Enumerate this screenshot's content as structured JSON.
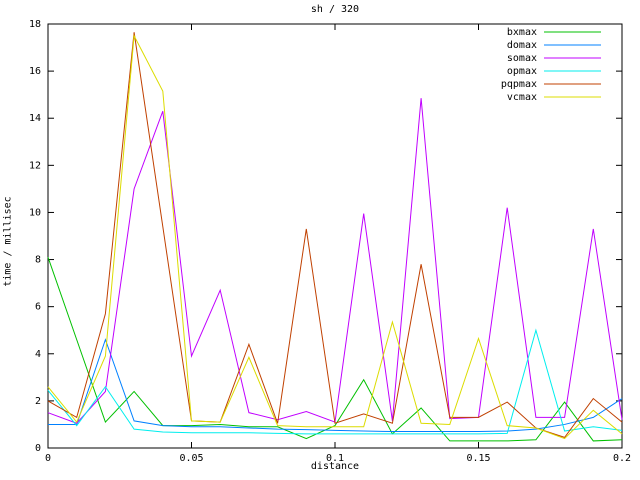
{
  "title": "sh / 320",
  "axes": {
    "x_label": "distance",
    "y_label": "time / millisec",
    "x_ticks": [
      {
        "v": 0,
        "label": "0"
      },
      {
        "v": 0.05,
        "label": "0.05"
      },
      {
        "v": 0.1,
        "label": "0.1"
      },
      {
        "v": 0.15,
        "label": "0.15"
      },
      {
        "v": 0.2,
        "label": "0.2"
      }
    ],
    "y_ticks": [
      {
        "v": 0,
        "label": "0"
      },
      {
        "v": 2,
        "label": "2"
      },
      {
        "v": 4,
        "label": "4"
      },
      {
        "v": 6,
        "label": "6"
      },
      {
        "v": 8,
        "label": "8"
      },
      {
        "v": 10,
        "label": "10"
      },
      {
        "v": 12,
        "label": "12"
      },
      {
        "v": 14,
        "label": "14"
      },
      {
        "v": 16,
        "label": "16"
      },
      {
        "v": 18,
        "label": "18"
      }
    ]
  },
  "chart_data": {
    "type": "line",
    "title": "sh / 320",
    "xlabel": "distance",
    "ylabel": "time / millisec",
    "xlim": [
      0,
      0.2
    ],
    "ylim": [
      0,
      18
    ],
    "grid": false,
    "legend_position": "top-right-inside",
    "x": [
      0,
      0.01,
      0.02,
      0.03,
      0.04,
      0.05,
      0.06,
      0.07,
      0.08,
      0.09,
      0.1,
      0.11,
      0.12,
      0.13,
      0.14,
      0.15,
      0.16,
      0.17,
      0.18,
      0.19,
      0.2
    ],
    "series": [
      {
        "name": "bxmax",
        "color": "#00c000",
        "values": [
          8.1,
          4.6,
          1.1,
          2.4,
          0.95,
          0.95,
          1.0,
          0.9,
          0.9,
          0.4,
          0.95,
          2.9,
          0.6,
          1.7,
          0.3,
          0.3,
          0.3,
          0.35,
          1.95,
          0.3,
          0.35
        ]
      },
      {
        "name": "domax",
        "color": "#0080ff",
        "values": [
          1.0,
          1.0,
          4.6,
          1.15,
          0.95,
          0.9,
          0.9,
          0.85,
          0.8,
          0.78,
          0.75,
          0.72,
          0.7,
          0.7,
          0.7,
          0.7,
          0.72,
          0.8,
          1.0,
          1.3,
          2.1
        ]
      },
      {
        "name": "somax",
        "color": "#c000ff",
        "values": [
          1.5,
          1.05,
          2.4,
          11.0,
          14.3,
          3.9,
          6.7,
          1.5,
          1.2,
          1.55,
          1.1,
          9.95,
          1.15,
          14.85,
          1.25,
          1.3,
          10.2,
          1.3,
          1.3,
          9.3,
          1.2
        ]
      },
      {
        "name": "opmax",
        "color": "#00eeee",
        "values": [
          2.45,
          0.95,
          2.6,
          0.8,
          0.68,
          0.65,
          0.65,
          0.65,
          0.62,
          0.6,
          0.6,
          0.6,
          0.6,
          0.6,
          0.6,
          0.6,
          0.62,
          5.0,
          0.72,
          0.9,
          0.75
        ]
      },
      {
        "name": "pqpmax",
        "color": "#c04000",
        "values": [
          2.0,
          1.3,
          5.7,
          17.65,
          9.4,
          1.15,
          1.1,
          4.4,
          1.05,
          9.3,
          1.05,
          1.45,
          1.05,
          7.8,
          1.3,
          1.3,
          1.95,
          0.85,
          0.45,
          2.1,
          1.1
        ]
      },
      {
        "name": "vcmax",
        "color": "#dcdc00",
        "values": [
          2.6,
          1.1,
          3.9,
          17.5,
          15.15,
          1.15,
          1.1,
          3.85,
          0.95,
          0.9,
          0.9,
          0.9,
          5.35,
          1.05,
          1.0,
          4.65,
          0.95,
          0.85,
          0.4,
          1.6,
          0.6
        ]
      }
    ]
  }
}
